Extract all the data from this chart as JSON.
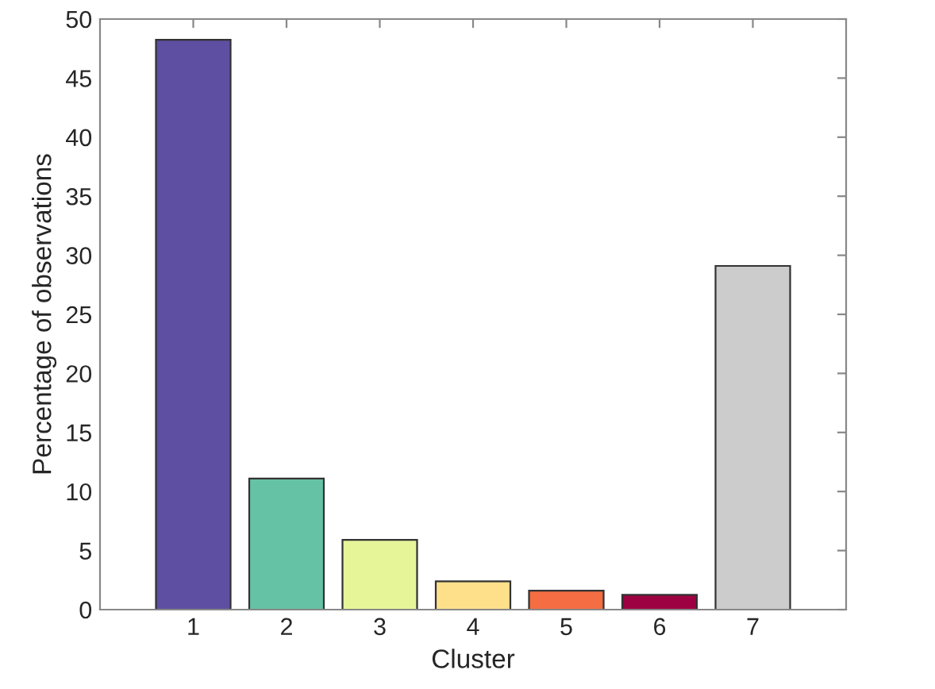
{
  "chart_data": {
    "type": "bar",
    "xlabel": "Cluster",
    "ylabel": "Percentage of observations",
    "categories": [
      "1",
      "2",
      "3",
      "4",
      "5",
      "6",
      "7"
    ],
    "values": [
      48.25,
      11.1,
      5.9,
      2.4,
      1.6,
      1.25,
      29.1
    ],
    "colors": [
      "#5e4fa2",
      "#66c2a5",
      "#e6f598",
      "#fee08b",
      "#f46d43",
      "#9e0142",
      "#cccccc"
    ],
    "ylim": [
      0,
      50
    ],
    "yticks": [
      0,
      5,
      10,
      15,
      20,
      25,
      30,
      35,
      40,
      45,
      50
    ],
    "grid": false
  }
}
